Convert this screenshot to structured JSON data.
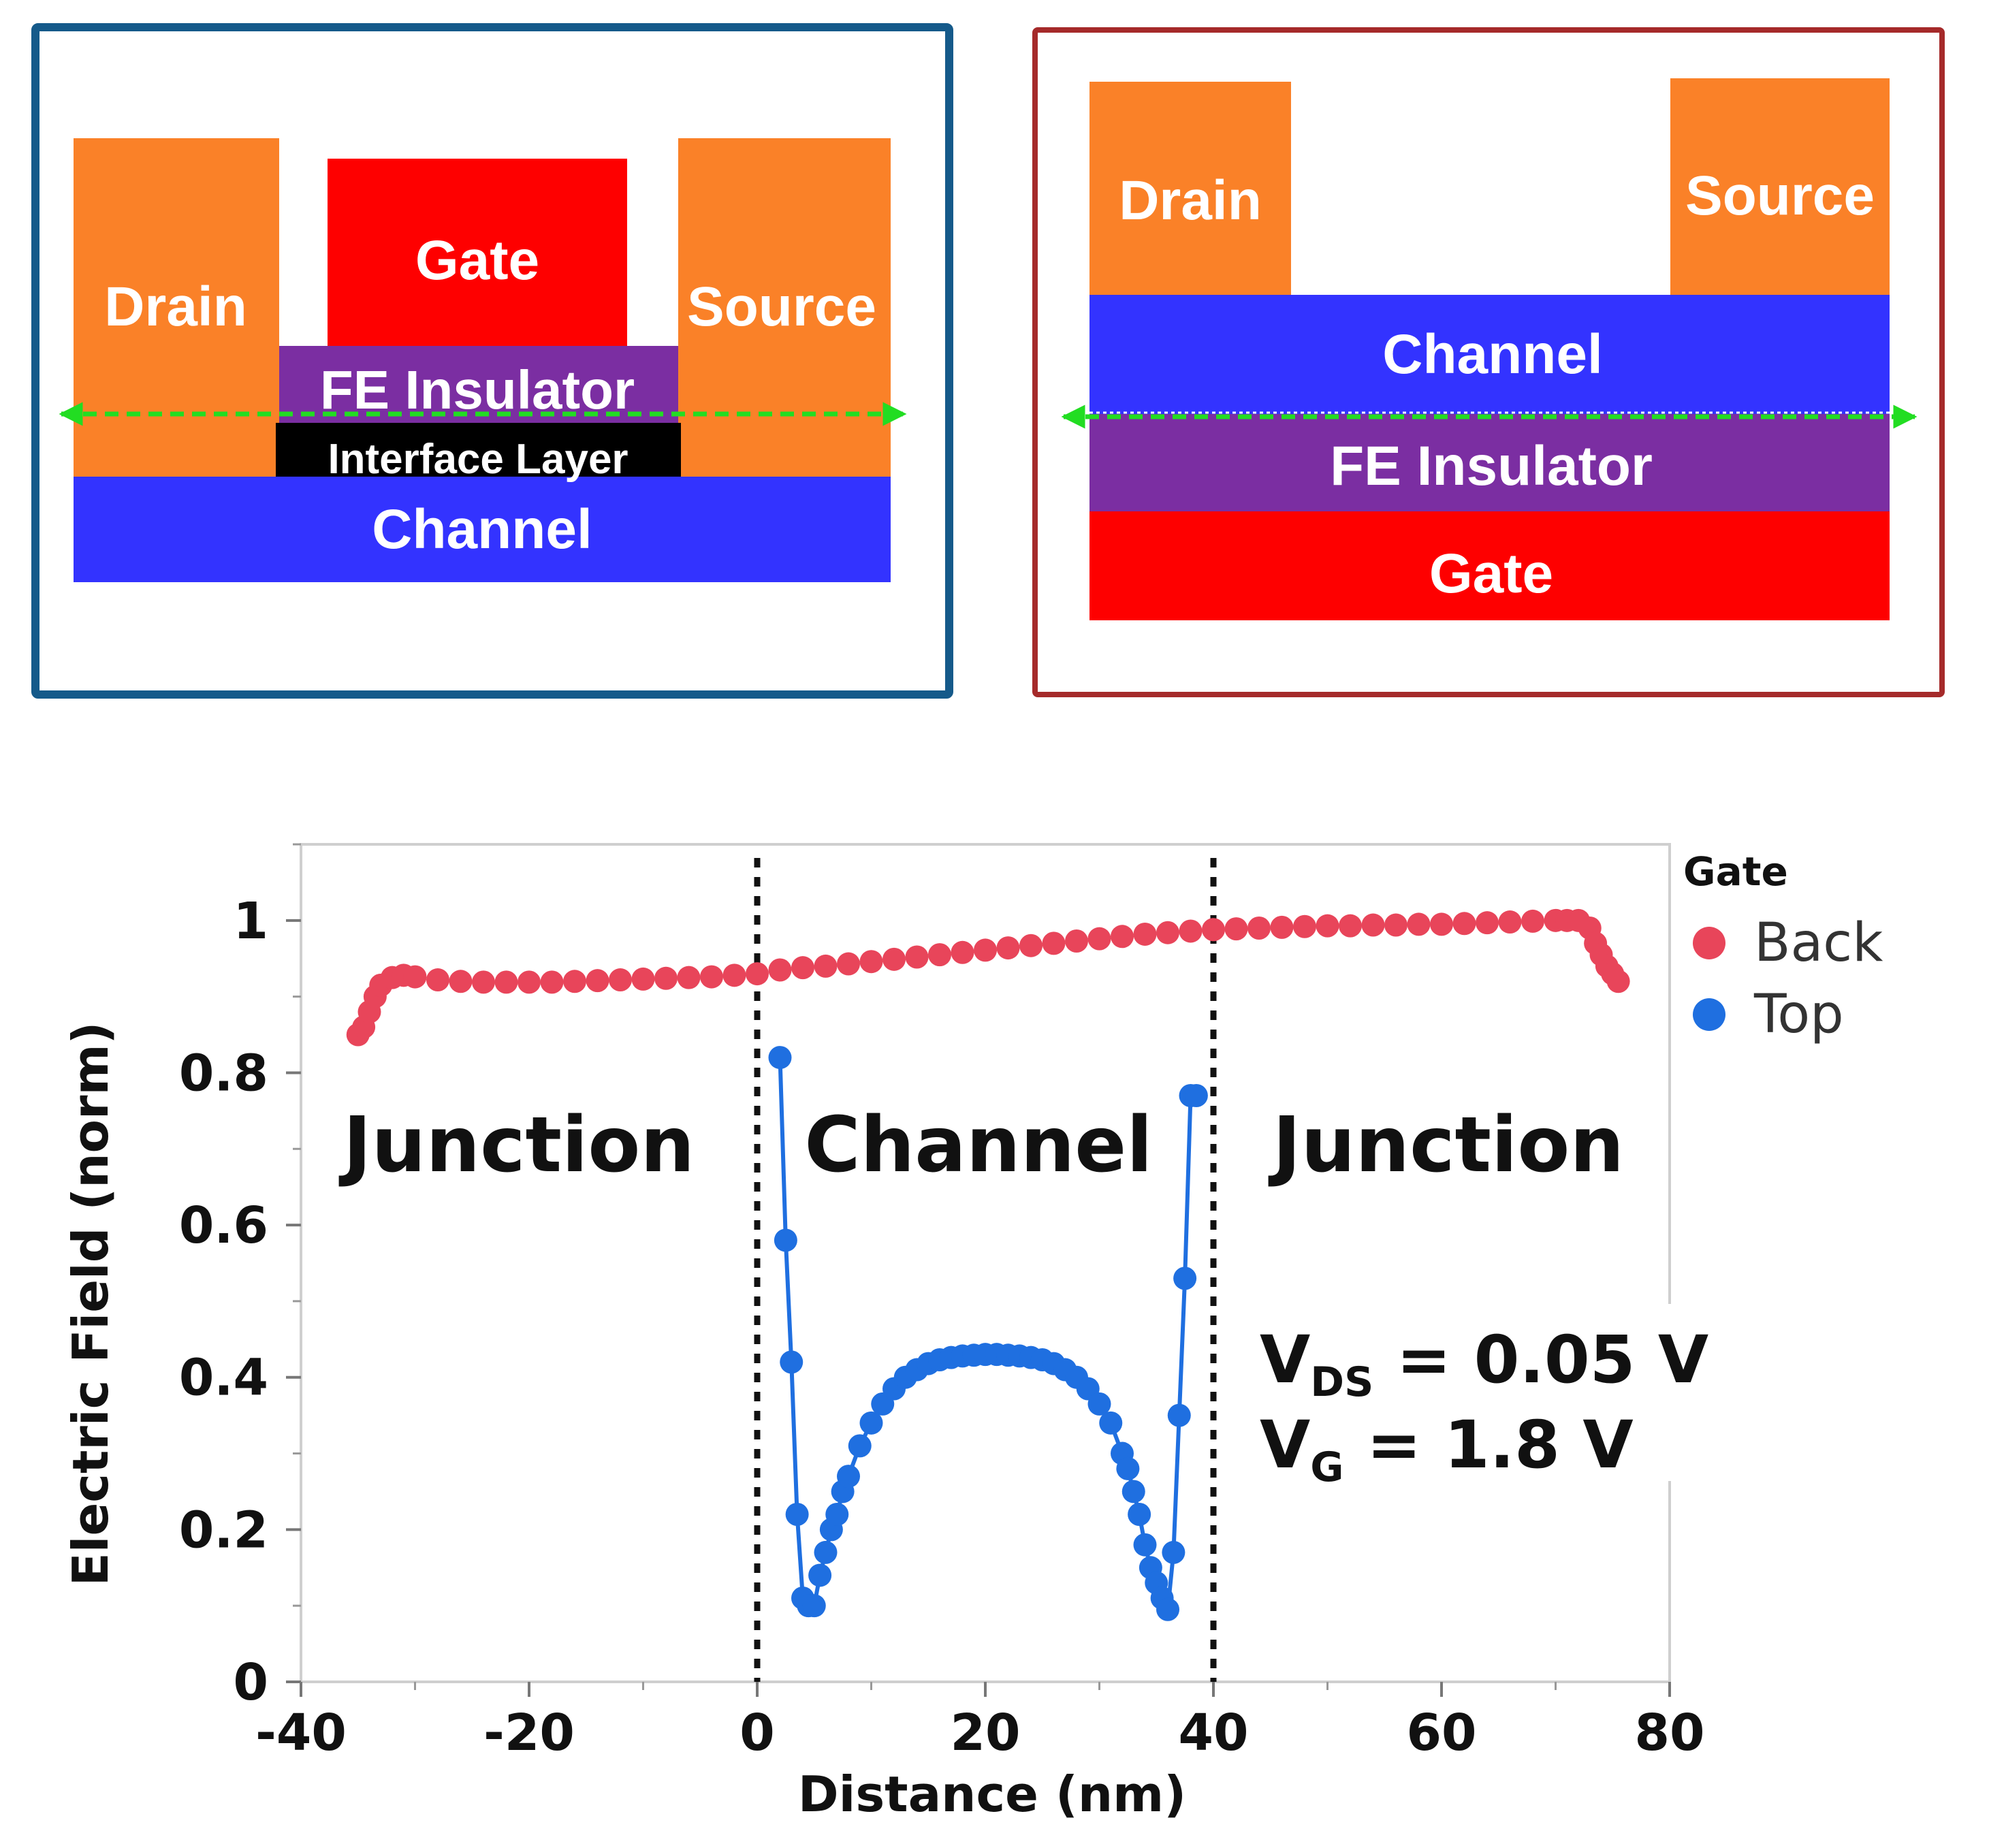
{
  "colors": {
    "electrode": "#fa8128",
    "gate": "#fe0000",
    "fe_insulator": "#7b2ea2",
    "channel": "#3333ff",
    "interface_layer": "#000000",
    "cut_arrow": "#22dd22",
    "top_panel_frame": "#155a8a",
    "back_panel_frame": "#a52a2a",
    "series_back": "#e8455a",
    "series_top": "#1f6fe0"
  },
  "top_gate_diagram": {
    "drain": "Drain",
    "gate": "Gate",
    "source": "Source",
    "fe_insulator": "FE Insulator",
    "interface_layer": "Interface Layer",
    "channel": "Channel"
  },
  "back_gate_diagram": {
    "drain": "Drain",
    "source": "Source",
    "channel": "Channel",
    "fe_insulator": "FE Insulator",
    "gate": "Gate"
  },
  "chart_data": {
    "type": "scatter",
    "xlabel": "Distance (nm)",
    "ylabel": "Electric Field (norm)",
    "xlim": [
      -40,
      80
    ],
    "ylim": [
      0,
      1.1
    ],
    "xticks": [
      -40,
      -20,
      0,
      20,
      40,
      60,
      80
    ],
    "yticks": [
      0,
      0.2,
      0.4,
      0.6,
      0.8,
      1
    ],
    "ytick_labels": [
      "0",
      "0.2",
      "0.4",
      "0.6",
      "0.8",
      "1"
    ],
    "vlines": [
      0,
      40
    ],
    "region_labels": [
      "Junction",
      "Channel",
      "Junction"
    ],
    "legend": {
      "title": "Gate",
      "placement": "top-right"
    },
    "annotation": {
      "vds": "V<sub>DS</sub> = 0.05 V",
      "vg": "V<sub>G</sub> = 1.8 V",
      "vds_text": "VDS = 0.05 V",
      "vg_text": "VG = 1.8 V"
    },
    "series": [
      {
        "name": "Back",
        "line": false,
        "x": [
          -35,
          -34.5,
          -34,
          -33.5,
          -33,
          -32,
          -31,
          -30,
          -28,
          -26,
          -24,
          -22,
          -20,
          -18,
          -16,
          -14,
          -12,
          -10,
          -8,
          -6,
          -4,
          -2,
          0,
          2,
          4,
          6,
          8,
          10,
          12,
          14,
          16,
          18,
          20,
          22,
          24,
          26,
          28,
          30,
          32,
          34,
          36,
          38,
          40,
          42,
          44,
          46,
          48,
          50,
          52,
          54,
          56,
          58,
          60,
          62,
          64,
          66,
          68,
          70,
          71,
          72,
          73,
          73.5,
          74,
          74.5,
          75,
          75.5
        ],
        "y": [
          0.85,
          0.86,
          0.88,
          0.9,
          0.915,
          0.925,
          0.928,
          0.926,
          0.922,
          0.92,
          0.919,
          0.919,
          0.919,
          0.919,
          0.92,
          0.921,
          0.922,
          0.923,
          0.924,
          0.925,
          0.926,
          0.928,
          0.93,
          0.935,
          0.938,
          0.94,
          0.943,
          0.946,
          0.949,
          0.952,
          0.955,
          0.958,
          0.961,
          0.964,
          0.967,
          0.97,
          0.973,
          0.976,
          0.979,
          0.982,
          0.984,
          0.986,
          0.988,
          0.989,
          0.99,
          0.991,
          0.992,
          0.993,
          0.993,
          0.994,
          0.994,
          0.995,
          0.995,
          0.996,
          0.997,
          0.998,
          0.999,
          1.0,
          1.0,
          1.0,
          0.99,
          0.97,
          0.955,
          0.94,
          0.93,
          0.92
        ]
      },
      {
        "name": "Top",
        "line": true,
        "x": [
          2,
          2.5,
          3,
          3.5,
          4,
          4.5,
          5,
          5.5,
          6,
          6.5,
          7,
          7.5,
          8,
          9,
          10,
          11,
          12,
          13,
          14,
          15,
          16,
          17,
          18,
          19,
          20,
          21,
          22,
          23,
          24,
          25,
          26,
          27,
          28,
          29,
          30,
          31,
          32,
          32.5,
          33,
          33.5,
          34,
          34.5,
          35,
          35.5,
          36,
          36.5,
          37,
          37.5,
          38,
          38.5
        ],
        "y": [
          0.82,
          0.58,
          0.42,
          0.22,
          0.11,
          0.1,
          0.1,
          0.14,
          0.17,
          0.2,
          0.22,
          0.25,
          0.27,
          0.31,
          0.34,
          0.365,
          0.385,
          0.4,
          0.41,
          0.418,
          0.423,
          0.426,
          0.428,
          0.429,
          0.43,
          0.43,
          0.429,
          0.428,
          0.426,
          0.423,
          0.418,
          0.41,
          0.4,
          0.385,
          0.365,
          0.34,
          0.3,
          0.28,
          0.25,
          0.22,
          0.18,
          0.15,
          0.13,
          0.11,
          0.095,
          0.17,
          0.35,
          0.53,
          0.77,
          0.77
        ]
      }
    ]
  }
}
